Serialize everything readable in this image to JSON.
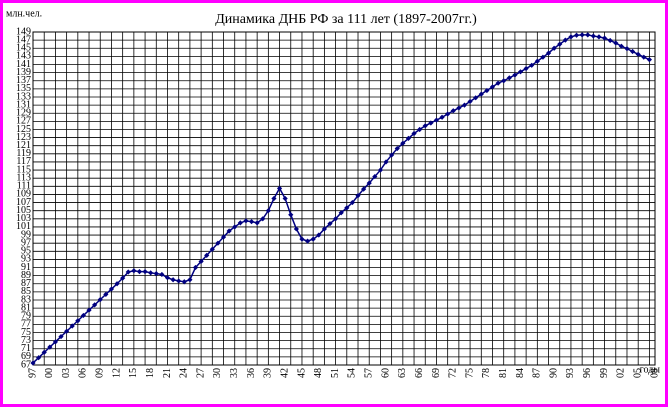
{
  "chart_data": {
    "type": "line",
    "title": "Динамика ДНБ РФ за 111 лет (1897-2007гг.)",
    "y_label": "млн.чел.",
    "x_label": "годы",
    "color": "#000080",
    "grid": true,
    "categories": [
      "97",
      null,
      null,
      "00",
      null,
      null,
      "03",
      null,
      null,
      "06",
      null,
      null,
      "09",
      null,
      null,
      "12",
      null,
      null,
      "15",
      null,
      null,
      "18",
      null,
      null,
      "21",
      null,
      null,
      "24",
      null,
      null,
      "27",
      null,
      null,
      "30",
      null,
      null,
      "33",
      null,
      null,
      "36",
      null,
      null,
      "39",
      null,
      null,
      "42",
      null,
      null,
      "45",
      null,
      null,
      "48",
      null,
      null,
      "51",
      null,
      null,
      "54",
      null,
      null,
      "57",
      null,
      null,
      "60",
      null,
      null,
      "63",
      null,
      null,
      "66",
      null,
      null,
      "69",
      null,
      null,
      "72",
      null,
      null,
      "75",
      null,
      null,
      "78",
      null,
      null,
      "81",
      null,
      null,
      "84",
      null,
      null,
      "87",
      null,
      null,
      "90",
      null,
      null,
      "93",
      null,
      null,
      "96",
      null,
      null,
      "99",
      null,
      null,
      "02",
      null,
      null,
      "05",
      null,
      null,
      "08"
    ],
    "values": [
      67.5,
      68.8,
      70.1,
      71.4,
      72.7,
      74.0,
      75.3,
      76.6,
      77.9,
      79.2,
      80.5,
      81.8,
      83.1,
      84.4,
      85.7,
      87.0,
      88.4,
      89.9,
      90.2,
      90.0,
      90.0,
      89.7,
      89.5,
      89.3,
      88.5,
      88.0,
      87.7,
      87.5,
      88.0,
      91.0,
      92.5,
      94.0,
      95.5,
      97.0,
      98.5,
      100.0,
      101.0,
      102.0,
      102.5,
      102.3,
      102.0,
      103.0,
      105.0,
      108.0,
      110.5,
      108.0,
      104.0,
      100.5,
      98.0,
      97.5,
      98.0,
      99.0,
      100.5,
      101.8,
      103.0,
      104.5,
      105.7,
      107.0,
      108.7,
      110.3,
      111.8,
      113.4,
      115.0,
      117.0,
      118.7,
      120.3,
      121.6,
      122.8,
      124.0,
      125.0,
      125.9,
      126.6,
      127.3,
      128.0,
      128.8,
      129.6,
      130.3,
      131.0,
      131.9,
      132.8,
      133.7,
      134.6,
      135.5,
      136.4,
      137.0,
      137.7,
      138.4,
      139.2,
      140.0,
      140.8,
      141.8,
      142.8,
      143.8,
      145.0,
      146.0,
      147.0,
      147.8,
      148.2,
      148.3,
      148.3,
      148.0,
      147.8,
      147.5,
      146.9,
      146.3,
      145.5,
      144.9,
      144.2,
      143.5,
      142.8,
      142.2,
      null
    ],
    "ylim": [
      67,
      149
    ],
    "yticks": [
      67,
      69,
      71,
      73,
      75,
      77,
      79,
      81,
      83,
      85,
      87,
      89,
      91,
      93,
      95,
      97,
      99,
      101,
      103,
      105,
      107,
      109,
      111,
      113,
      115,
      117,
      119,
      121,
      123,
      125,
      127,
      129,
      131,
      133,
      135,
      137,
      139,
      141,
      143,
      145,
      147,
      149
    ]
  }
}
